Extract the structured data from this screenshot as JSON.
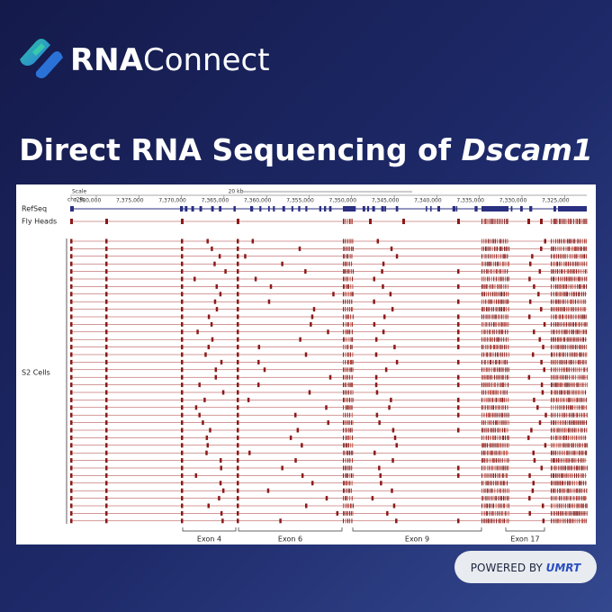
{
  "logo": {
    "text_bold": "RNA",
    "text": "Connect"
  },
  "title": {
    "text": "Direct RNA Sequencing of ",
    "emphasis": "Dscam1"
  },
  "browser": {
    "scale_label": "Scale",
    "chrom": "chr2R:",
    "scale_bar": "20 kb",
    "coordinates": [
      "7,380,000",
      "7,375,000",
      "7,370,000",
      "7,365,000",
      "7,360,000",
      "7,355,000",
      "7,350,000",
      "7,345,000",
      "7,340,000",
      "7,335,000",
      "7,330,000",
      "7,325,000"
    ],
    "tracks": [
      "RefSeq",
      "Fly Heads",
      "S2 Cells"
    ],
    "exon_labels": [
      "Exon 4",
      "Exon 6",
      "Exon 9",
      "Exon 17"
    ]
  },
  "footer": {
    "powered_by": "POWERED BY",
    "brand": "UMRT"
  }
}
